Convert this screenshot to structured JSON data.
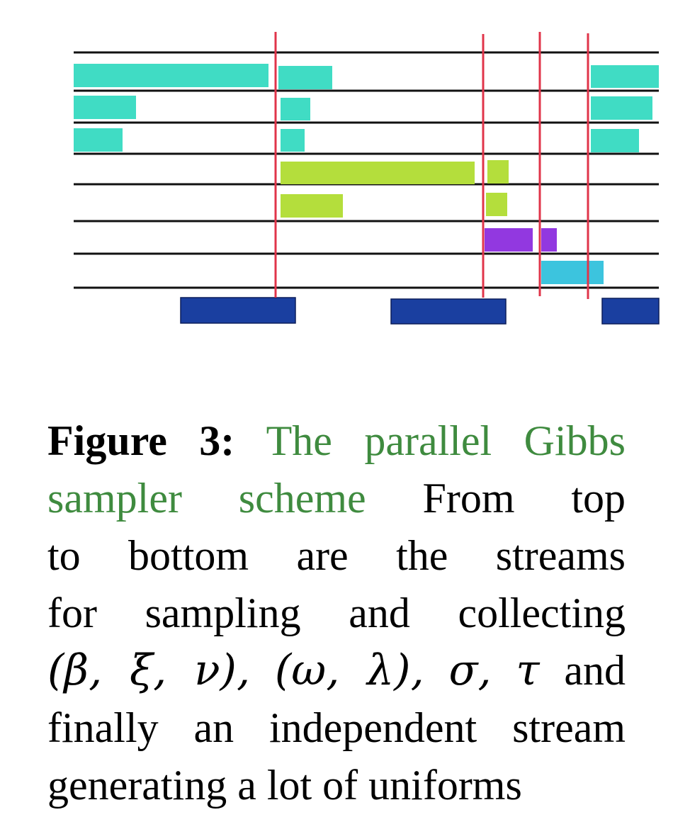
{
  "figure": {
    "colors": {
      "timeline": "#111111",
      "sync_marker": "#e0344a",
      "stream_beta_xi_nu": "#40dcc4",
      "stream_omega_lambda": "#b4de3c",
      "stream_sigma": "#9238e0",
      "stream_tau": "#3cc4de",
      "stream_uniforms": "#1a3fa0"
    },
    "streams": [
      {
        "id": "beta-xi-nu",
        "rows": 3,
        "color_key": "stream_beta_xi_nu"
      },
      {
        "id": "omega-lambda",
        "rows": 2,
        "color_key": "stream_omega_lambda"
      },
      {
        "id": "sigma",
        "rows": 1,
        "color_key": "stream_sigma"
      },
      {
        "id": "tau",
        "rows": 1,
        "color_key": "stream_tau"
      },
      {
        "id": "uniforms",
        "rows": 1,
        "color_key": "stream_uniforms"
      }
    ]
  },
  "caption": {
    "label": "Figure 3:",
    "title_part1": "The parallel Gibbs",
    "title_part2_sampler": "sampler",
    "title_part2_scheme": "scheme",
    "line2_words": [
      "From",
      "top"
    ],
    "line3_words": [
      "to",
      "bottom",
      "are",
      "the",
      "streams"
    ],
    "line4_words": [
      "for",
      "sampling",
      "and",
      "collecting"
    ],
    "math": {
      "group1": "(β, ξ, ν),",
      "group2": "(ω, λ),",
      "group3": "σ,",
      "group4": "τ"
    },
    "line5_and": "and",
    "line6_words": [
      "finally",
      "an",
      "independent",
      "stream"
    ],
    "line7": "generating a lot of uniforms"
  }
}
